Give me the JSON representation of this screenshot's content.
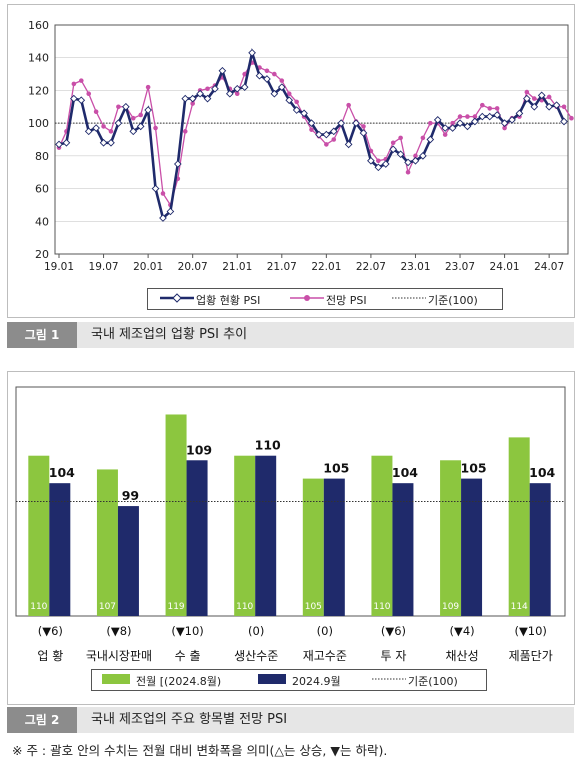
{
  "figure1": {
    "caption_tag": "그림 1",
    "caption_text": "국내 제조업의 업황 PSI 추이",
    "legend": {
      "current": "업황 현황 PSI",
      "outlook": "전망 PSI",
      "baseline": "기준(100)"
    }
  },
  "figure2": {
    "caption_tag": "그림 2",
    "caption_text": "국내 제조업의 주요 항목별 전망 PSI",
    "legend": {
      "prev": "전월 [(2024.8월)",
      "curr": "2024.9월",
      "baseline": "기준(100)"
    }
  },
  "note": "※ 주 : 괄호 안의 수치는 전월 대비 변화폭을 의미(△는 상승, ▼는 하락).",
  "colors": {
    "navy": "#1f2a6b",
    "pink": "#c94fa8",
    "green": "#8cc63f",
    "axis": "#555555",
    "grid": "#cccccc"
  },
  "chart_data": [
    {
      "type": "line",
      "ylim": [
        20,
        160
      ],
      "yticks": [
        20,
        40,
        60,
        80,
        100,
        120,
        140,
        160
      ],
      "xtick_labels": [
        "19.01",
        "19.07",
        "20.01",
        "20.07",
        "21.01",
        "21.07",
        "22.01",
        "22.07",
        "23.01",
        "23.07",
        "24.01",
        "24.07"
      ],
      "xtick_index": [
        0,
        6,
        12,
        18,
        24,
        30,
        36,
        42,
        48,
        54,
        60,
        66
      ],
      "baseline": 100,
      "grid": "horizontal",
      "legend_position": "bottom",
      "series": [
        {
          "name": "업황 현황 PSI",
          "marker": "diamond-open",
          "values": [
            87,
            88,
            115,
            114,
            95,
            97,
            88,
            88,
            100,
            110,
            95,
            98,
            108,
            60,
            42,
            46,
            75,
            115,
            115,
            118,
            115,
            121,
            132,
            118,
            121,
            122,
            143,
            129,
            127,
            118,
            122,
            114,
            108,
            106,
            100,
            93,
            93,
            95,
            100,
            87,
            100,
            94,
            77,
            73,
            75,
            84,
            81,
            76,
            77,
            80,
            90,
            102,
            97,
            97,
            100,
            98,
            101,
            104,
            104,
            105,
            100,
            102,
            106,
            115,
            110,
            117,
            110,
            111,
            101
          ]
        },
        {
          "name": "전망 PSI",
          "marker": "dot",
          "values": [
            85,
            95,
            124,
            126,
            118,
            107,
            98,
            95,
            110,
            110,
            103,
            105,
            122,
            97,
            57,
            50,
            66,
            95,
            112,
            120,
            121,
            123,
            128,
            121,
            118,
            130,
            137,
            134,
            132,
            130,
            126,
            118,
            113,
            104,
            96,
            92,
            87,
            90,
            99,
            111,
            101,
            98,
            83,
            77,
            78,
            88,
            91,
            70,
            80,
            91,
            100,
            100,
            93,
            100,
            104,
            104,
            104,
            111,
            109,
            109,
            97,
            103,
            104,
            119,
            115,
            114,
            116,
            110,
            110,
            103
          ]
        },
        {
          "name": "기준(100)",
          "style": "dotted",
          "values": [
            100
          ]
        }
      ]
    },
    {
      "type": "bar",
      "categories": [
        "업 황",
        "국내시장판매",
        "수 출",
        "생산수준",
        "재고수준",
        "투 자",
        "채산성",
        "제품단가"
      ],
      "ylim": [
        75,
        125
      ],
      "baseline": 100,
      "legend_position": "bottom",
      "series": [
        {
          "name": "전월 [(2024.8월)",
          "values": [
            110,
            107,
            119,
            110,
            105,
            110,
            109,
            114
          ]
        },
        {
          "name": "2024.9월",
          "values": [
            104,
            99,
            109,
            110,
            105,
            104,
            105,
            104
          ]
        }
      ],
      "change_labels": [
        "(▼6)",
        "(▼8)",
        "(▼10)",
        "(0)",
        "(0)",
        "(▼6)",
        "(▼4)",
        "(▼10)"
      ]
    }
  ]
}
